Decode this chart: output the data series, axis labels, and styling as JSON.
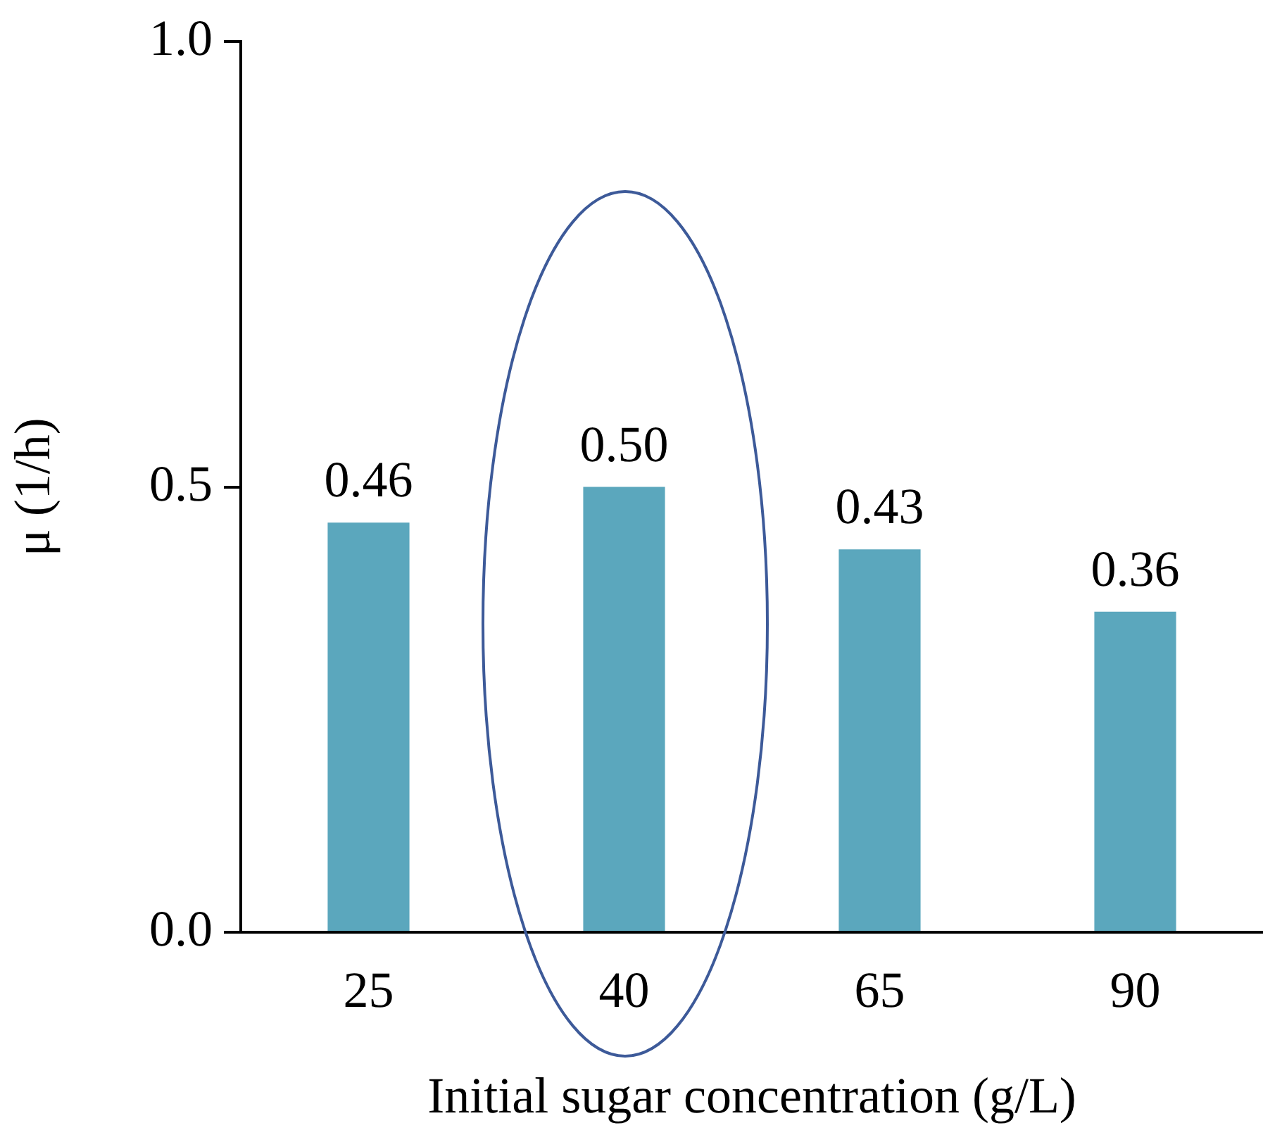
{
  "chart_data": {
    "type": "bar",
    "xlabel": "Initial sugar concentration (g/L)",
    "ylabel": "μ (1/h)",
    "categories": [
      "25",
      "40",
      "65",
      "90"
    ],
    "values": [
      0.46,
      0.5,
      0.43,
      0.36
    ],
    "value_labels": [
      "0.46",
      "0.50",
      "0.43",
      "0.36"
    ],
    "color": "#5ba7bd",
    "ylim": [
      0,
      1
    ],
    "yticks": [
      {
        "value": 0,
        "label": "0.0"
      },
      {
        "value": 0.5,
        "label": "0.5"
      },
      {
        "value": 1,
        "label": "1.0"
      }
    ]
  }
}
